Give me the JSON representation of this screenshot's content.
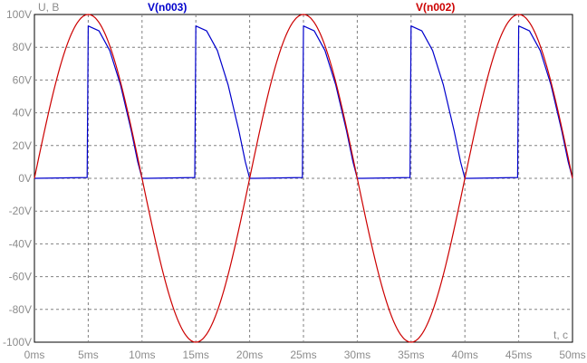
{
  "chart_data": {
    "type": "line",
    "title": "",
    "ylabel": "U, В",
    "xlabel": "t, c",
    "xlim": [
      0,
      50
    ],
    "ylim": [
      -100,
      100
    ],
    "x_unit": "ms",
    "y_unit": "V",
    "x_ticks": [
      0,
      5,
      10,
      15,
      20,
      25,
      30,
      35,
      40,
      45,
      50
    ],
    "y_ticks": [
      100,
      80,
      60,
      40,
      20,
      0,
      -20,
      -40,
      -60,
      -80,
      -100
    ],
    "x_tick_labels": [
      "0ms",
      "5ms",
      "10ms",
      "15ms",
      "20ms",
      "25ms",
      "30ms",
      "35ms",
      "40ms",
      "45ms",
      "50ms"
    ],
    "y_tick_labels": [
      "100V",
      "80V",
      "60V",
      "40V",
      "20V",
      "0V",
      "-20V",
      "-40V",
      "-60V",
      "-80V",
      "-100V"
    ],
    "grid": true,
    "series": [
      {
        "name": "V(n003)",
        "color": "#0000cc",
        "x": [
          0,
          4.9,
          5,
          6,
          7,
          8,
          9,
          9.6,
          10,
          10.5,
          14.9,
          15,
          16,
          17,
          18,
          19,
          19.6,
          20,
          20.5,
          24.9,
          25,
          26,
          27,
          28,
          29,
          29.6,
          30,
          30.5,
          34.9,
          35,
          36,
          37,
          38,
          39,
          39.6,
          40,
          40.5,
          44.9,
          45,
          46,
          47,
          48,
          49,
          49.6,
          50
        ],
        "values": [
          0,
          0.5,
          93,
          90,
          78,
          57,
          29,
          10,
          0,
          0,
          0.5,
          93,
          90,
          78,
          57,
          29,
          10,
          0,
          0,
          0.5,
          93,
          90,
          78,
          57,
          29,
          10,
          0,
          0,
          0.5,
          93,
          90,
          78,
          57,
          29,
          10,
          0,
          0,
          0.5,
          93,
          90,
          78,
          57,
          29,
          10,
          0
        ]
      },
      {
        "name": "V(n002)",
        "color": "#cc0000",
        "amplitude": 100,
        "period_ms": 20,
        "x": [
          0,
          1,
          2,
          3,
          4,
          5,
          6,
          7,
          8,
          9,
          10,
          11,
          12,
          13,
          14,
          15,
          16,
          17,
          18,
          19,
          20,
          21,
          22,
          23,
          24,
          25,
          26,
          27,
          28,
          29,
          30,
          31,
          32,
          33,
          34,
          35,
          36,
          37,
          38,
          39,
          40,
          41,
          42,
          43,
          44,
          45,
          46,
          47,
          48,
          49,
          50
        ],
        "values": [
          0,
          30.9,
          58.8,
          80.9,
          95.1,
          100,
          95.1,
          80.9,
          58.8,
          30.9,
          0,
          -30.9,
          -58.8,
          -80.9,
          -95.1,
          -100,
          -95.1,
          -80.9,
          -58.8,
          -30.9,
          0,
          30.9,
          58.8,
          80.9,
          95.1,
          100,
          95.1,
          80.9,
          58.8,
          30.9,
          0,
          -30.9,
          -58.8,
          -80.9,
          -95.1,
          -100,
          -95.1,
          -80.9,
          -58.8,
          -30.9,
          0,
          30.9,
          58.8,
          80.9,
          95.1,
          100,
          95.1,
          80.9,
          58.8,
          30.9,
          0
        ]
      }
    ]
  }
}
